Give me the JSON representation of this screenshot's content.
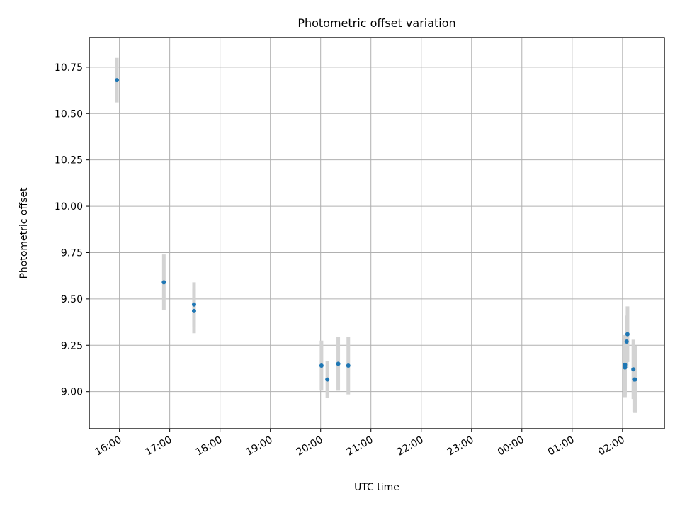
{
  "chart_data": {
    "type": "scatter",
    "title": "Photometric offset variation",
    "xlabel": "UTC time",
    "ylabel": "Photometric offset",
    "x_unit": "UTC time (HH:MM)",
    "xlim": [
      "15:24",
      "02:50 (+1 day)"
    ],
    "ylim": [
      8.8,
      10.91
    ],
    "x_ticks": [
      "16:00",
      "17:00",
      "18:00",
      "19:00",
      "20:00",
      "21:00",
      "22:00",
      "23:00",
      "00:00",
      "01:00",
      "02:00"
    ],
    "y_ticks": [
      "9.00",
      "9.25",
      "9.50",
      "9.75",
      "10.00",
      "10.25",
      "10.50",
      "10.75"
    ],
    "grid": true,
    "colors": {
      "point": "#1f77b4",
      "errorbar": "#d3d3d3",
      "grid": "#b0b0b0"
    },
    "series": [
      {
        "points": [
          {
            "time": "15:57",
            "y": 10.68,
            "yerr": 0.12
          },
          {
            "time": "16:53",
            "y": 9.59,
            "yerr": 0.15
          },
          {
            "time": "17:29",
            "y": 9.47,
            "yerr": 0.12
          },
          {
            "time": "17:29",
            "y": 9.435,
            "yerr": 0.12
          },
          {
            "time": "20:01",
            "y": 9.14,
            "yerr": 0.135
          },
          {
            "time": "20:08",
            "y": 9.065,
            "yerr": 0.1
          },
          {
            "time": "20:21",
            "y": 9.15,
            "yerr": 0.145
          },
          {
            "time": "20:33",
            "y": 9.14,
            "yerr": 0.155
          },
          {
            "time": "02:03",
            "y": 9.145,
            "yerr": 0.16
          },
          {
            "time": "02:03",
            "y": 9.13,
            "yerr": 0.16
          },
          {
            "time": "02:05",
            "y": 9.27,
            "yerr": 0.14
          },
          {
            "time": "02:06",
            "y": 9.31,
            "yerr": 0.15
          },
          {
            "time": "02:13",
            "y": 9.12,
            "yerr": 0.16
          },
          {
            "time": "02:14",
            "y": 9.065,
            "yerr": 0.175
          },
          {
            "time": "02:15",
            "y": 9.065,
            "yerr": 0.18
          }
        ]
      }
    ]
  }
}
